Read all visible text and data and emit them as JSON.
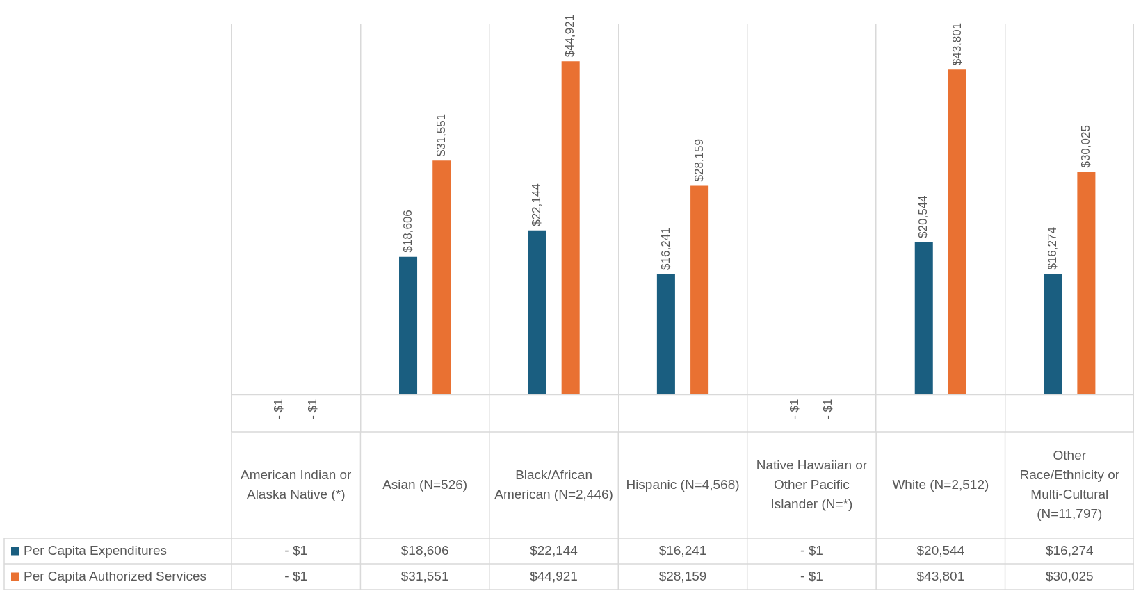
{
  "chart_data": {
    "type": "bar",
    "categories": [
      "American Indian or Alaska Native (*)",
      "Asian (N=526)",
      "Black/African American (N=2,446)",
      "Hispanic (N=4,568)",
      "Native Hawaiian or Other Pacific Islander (N=*)",
      "White (N=2,512)",
      "Other Race/Ethnicity or Multi-Cultural (N=11,797)"
    ],
    "series": [
      {
        "name": "Per Capita Expenditures",
        "color": "#1a5e80",
        "values": [
          -1,
          18606,
          22144,
          16241,
          -1,
          20544,
          16274
        ],
        "value_labels": [
          "- $1",
          "$18,606",
          "$22,144",
          "$16,241",
          "- $1",
          "$20,544",
          "$16,274"
        ]
      },
      {
        "name": "Per Capita Authorized Services",
        "color": "#e97132",
        "values": [
          -1,
          31551,
          44921,
          28159,
          -1,
          43801,
          30025
        ],
        "value_labels": [
          "- $1",
          "$31,551",
          "$44,921",
          "$28,159",
          "- $1",
          "$43,801",
          "$30,025"
        ]
      }
    ],
    "ylim": [
      -5000,
      50000
    ],
    "grid": "x",
    "legend": "bottom"
  }
}
